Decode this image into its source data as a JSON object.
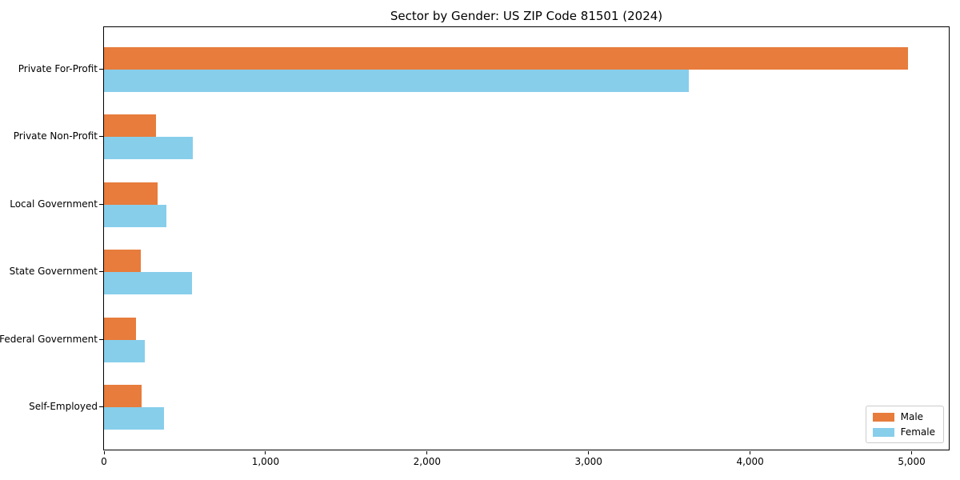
{
  "figure": {
    "background": "#ffffff"
  },
  "chart_data": {
    "type": "bar",
    "orientation": "horizontal",
    "title": "Sector by Gender: US ZIP Code 81501 (2024)",
    "xlabel": "",
    "ylabel": "",
    "categories": [
      "Private For-Profit",
      "Private Non-Profit",
      "Local Government",
      "State Government",
      "Federal Government",
      "Self-Employed"
    ],
    "series": [
      {
        "name": "Male",
        "color": "#e77c3c",
        "values": [
          4975,
          320,
          330,
          230,
          200,
          235
        ]
      },
      {
        "name": "Female",
        "color": "#87ceeb",
        "values": [
          3620,
          550,
          385,
          545,
          255,
          370
        ]
      }
    ],
    "xlim": [
      0,
      5230
    ],
    "xticks": [
      {
        "value": 0,
        "label": "0"
      },
      {
        "value": 1000,
        "label": "1,000"
      },
      {
        "value": 2000,
        "label": "2,000"
      },
      {
        "value": 3000,
        "label": "3,000"
      },
      {
        "value": 4000,
        "label": "4,000"
      },
      {
        "value": 5000,
        "label": "5,000"
      }
    ],
    "grid": false,
    "legend": {
      "position": "lower right",
      "entries": [
        "Male",
        "Female"
      ]
    },
    "axis_color": "#000000"
  }
}
